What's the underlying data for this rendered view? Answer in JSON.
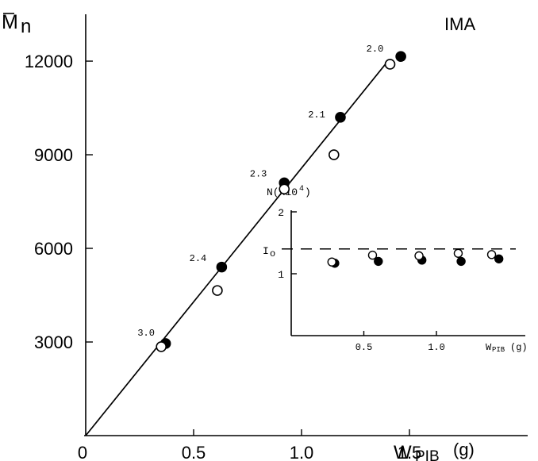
{
  "chart_data": [
    {
      "type": "scatter",
      "title": "IMA",
      "ylabel_main": "M",
      "ylabel_sub": "n",
      "xlabel_main": "W",
      "xlabel_sub": "PIB",
      "xlabel_unit": "(g)",
      "xlim": [
        0,
        1.65
      ],
      "ylim": [
        0,
        13500
      ],
      "x_ticks": [
        "0",
        "0.5",
        "1.0",
        "1.5"
      ],
      "y_ticks": [
        "3000",
        "6000",
        "9000",
        "12000"
      ],
      "fit_line": {
        "x": [
          0,
          1.4
        ],
        "y": [
          0,
          12000
        ]
      },
      "series": [
        {
          "marker": "filled",
          "x": [
            0.37,
            0.63,
            0.92,
            1.18,
            1.46
          ],
          "y": [
            2950,
            5400,
            8100,
            10200,
            12150
          ]
        },
        {
          "marker": "open",
          "x": [
            0.35,
            0.61,
            0.92,
            1.15,
            1.41
          ],
          "y": [
            2850,
            4650,
            7900,
            9000,
            11900
          ]
        }
      ],
      "annotations": [
        {
          "text": "3.0",
          "x": 0.28,
          "y": 3200
        },
        {
          "text": "2.4",
          "x": 0.52,
          "y": 5600
        },
        {
          "text": "2.3",
          "x": 0.8,
          "y": 8300
        },
        {
          "text": "2.1",
          "x": 1.07,
          "y": 10200
        },
        {
          "text": "2.0",
          "x": 1.34,
          "y": 12300
        }
      ]
    },
    {
      "type": "scatter",
      "ylabel": "N(x10",
      "ylabel_exp": "4",
      "ylabel_close": ")",
      "xlabel_main": "W",
      "xlabel_sub": "PIB",
      "xlabel_unit": "(g)",
      "xlim": [
        0,
        1.6
      ],
      "ylim": [
        0,
        2
      ],
      "x_ticks": [
        "0.5",
        "1.0"
      ],
      "y_ticks": [
        "1",
        "2"
      ],
      "reference_line": {
        "label": "I",
        "label_sub": "o",
        "y": 1.4
      },
      "series": [
        {
          "marker": "filled",
          "x": [
            0.3,
            0.6,
            0.9,
            1.17,
            1.43
          ],
          "y": [
            1.17,
            1.2,
            1.22,
            1.2,
            1.24
          ]
        },
        {
          "marker": "open",
          "x": [
            0.28,
            0.56,
            0.88,
            1.15,
            1.38
          ],
          "y": [
            1.19,
            1.3,
            1.29,
            1.33,
            1.31
          ]
        }
      ]
    }
  ]
}
